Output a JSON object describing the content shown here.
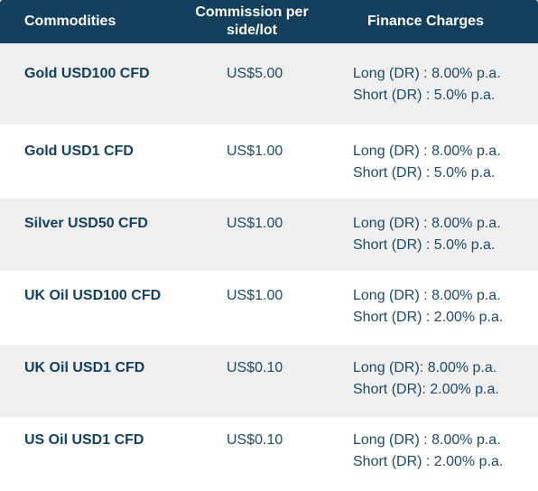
{
  "headers": {
    "commodities": "Commodities",
    "commission": "Commission per side/lot",
    "finance": "Finance Charges"
  },
  "rows": [
    {
      "name": "Gold USD100 CFD",
      "commission": "US$5.00",
      "long": "Long (DR) : 8.00% p.a.",
      "short": "Short (DR) : 5.0% p.a."
    },
    {
      "name": "Gold USD1 CFD",
      "commission": "US$1.00",
      "long": "Long (DR) : 8.00% p.a.",
      "short": "Short (DR) : 5.0% p.a."
    },
    {
      "name": "Silver USD50 CFD",
      "commission": "US$1.00",
      "long": "Long (DR) : 8.00% p.a.",
      "short": "Short (DR) : 5.0% p.a."
    },
    {
      "name": "UK Oil USD100 CFD",
      "commission": "US$1.00",
      "long": "Long (DR) : 8.00% p.a.",
      "short": "Short (DR) : 2.00% p.a."
    },
    {
      "name": "UK Oil USD1 CFD",
      "commission": "US$0.10",
      "long": "Long (DR): 8.00% p.a.",
      "short": "Short (DR): 2.00% p.a."
    },
    {
      "name": "US Oil USD1 CFD",
      "commission": "US$0.10",
      "long": "Long (DR) : 8.00% p.a.",
      "short": "Short (DR) : 2.00% p.a."
    }
  ],
  "colors": {
    "header_bg": "#14405d",
    "row_shaded": "#efefef",
    "text": "#1f4a66"
  }
}
